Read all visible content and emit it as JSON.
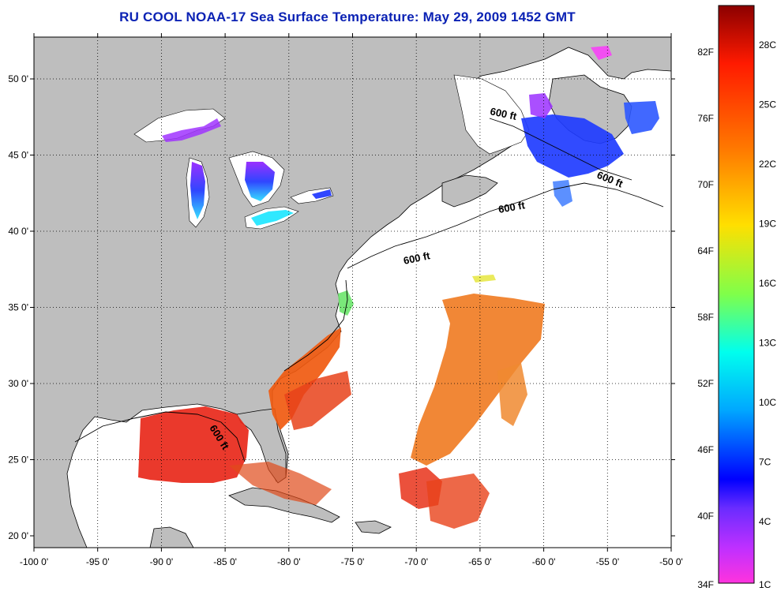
{
  "title": "RU COOL  NOAA-17  Sea Surface Temperature:  May 29, 2009 1452 GMT",
  "axes": {
    "lon_ticks": [
      "-100 0'",
      "-95 0'",
      "-90 0'",
      "-85 0'",
      "-80 0'",
      "-75 0'",
      "-70 0'",
      "-65 0'",
      "-60 0'",
      "-55 0'",
      "-50 0'"
    ],
    "lat_ticks": [
      "50 0'",
      "45 0'",
      "40 0'",
      "35 0'",
      "30 0'",
      "25 0'",
      "20 0'"
    ]
  },
  "contour_labels": [
    "600 ft",
    "600 ft",
    "600 ft",
    "600 ft",
    "600 ft"
  ],
  "colorbar": {
    "fahrenheit_labels": [
      "82F",
      "76F",
      "70F",
      "64F",
      "58F",
      "52F",
      "46F",
      "40F",
      "34F"
    ],
    "celsius_labels": [
      "28C",
      "25C",
      "22C",
      "19C",
      "16C",
      "13C",
      "10C",
      "7C",
      "4C",
      "1C"
    ]
  },
  "colors": {
    "land": "#bebebe",
    "ocean": "#ffffff",
    "title": "#0b22b4"
  }
}
